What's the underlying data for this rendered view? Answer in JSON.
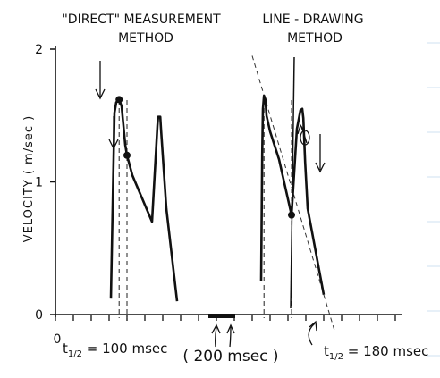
{
  "chart_data": {
    "type": "line",
    "panel_titles": [
      [
        "\"DIRECT\" MEASUREMENT",
        "METHOD"
      ],
      [
        "LINE - DRAWING",
        "METHOD"
      ]
    ],
    "ylabel": "VELOCITY  ( m/sec )",
    "ylim": [
      0,
      2
    ],
    "y_ticks": [
      0,
      1,
      2
    ],
    "y_tick_labels": [
      "0",
      "1",
      "2"
    ],
    "x_origin_label": "0",
    "time_scale_label": "( 200  msec )",
    "annotations": [
      {
        "prefix": "t",
        "sub": "1/2",
        "text": " = 100 msec"
      },
      {
        "prefix": "t",
        "sub": "1/2",
        "text": " = 180 msec"
      }
    ],
    "x_units": "msec",
    "series": [
      {
        "x": [
          155,
          165,
          170,
          178,
          185,
          195,
          200,
          215,
          270,
          285,
          287,
          293,
          295,
          310,
          340
        ],
        "y": [
          0.12,
          1.52,
          1.6,
          1.62,
          1.57,
          1.28,
          1.2,
          1.05,
          0.7,
          1.42,
          1.49,
          1.49,
          1.4,
          0.8,
          0.1
        ]
      },
      {
        "x": [
          575,
          578,
          580,
          583,
          587,
          590,
          600,
          625,
          660,
          675,
          685,
          690,
          693,
          698,
          705,
          750
        ],
        "y": [
          0.25,
          1.2,
          1.55,
          1.65,
          1.62,
          1.5,
          1.38,
          1.17,
          0.75,
          1.4,
          1.54,
          1.55,
          1.48,
          1.15,
          0.8,
          0.15
        ]
      }
    ],
    "markers": [
      {
        "x": 178,
        "y": 1.62
      },
      {
        "x": 200,
        "y": 1.2
      },
      {
        "x": 660,
        "y": 0.75
      }
    ],
    "tangent_line": {
      "x": [
        550,
        780
      ],
      "y": [
        1.95,
        -0.12
      ]
    },
    "half_time_lines": [
      {
        "x": [
          178,
          200
        ]
      },
      {
        "x": [
          583,
          660
        ]
      }
    ],
    "scale_bar_msec": 200
  }
}
